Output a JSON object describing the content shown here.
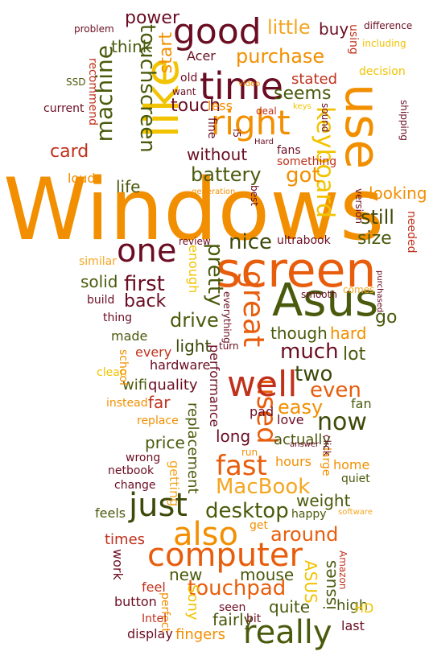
{
  "colors": {
    "orange": "#f28f00",
    "deep_orange": "#e85d0c",
    "dark_orange": "#d2560a",
    "red": "#c0311c",
    "crimson": "#a61e2d",
    "maroon": "#6b0d22",
    "olive": "#4a5a0c",
    "dark_olive": "#3d4a0a",
    "yellow": "#f2c300",
    "light_orange": "#f5a623"
  },
  "words": {
    "windows": "Windows",
    "like": "like",
    "screen": "screen",
    "use": "use",
    "time": "time",
    "good": "good",
    "right": "right",
    "asus": "Asus",
    "computer": "computer",
    "great": "great",
    "well": "well",
    "also": "also",
    "really": "really",
    "just": "just",
    "keyboard": "keyboard",
    "machine": "machine",
    "touchscreen": "touchscreen",
    "one": "one",
    "used": "used",
    "fast": "fast",
    "purchase": "purchase",
    "battery": "battery",
    "pretty": "pretty",
    "first": "first",
    "drive": "drive",
    "desktop": "desktop",
    "touchpad": "touchpad",
    "macbook": "MacBook",
    "around": "around",
    "now": "now",
    "two": "two",
    "much": "much",
    "even": "even",
    "easy": "easy",
    "little": "little",
    "power": "power",
    "think": "think",
    "start": "start",
    "touch": "touch",
    "got": "got",
    "still": "still",
    "looking": "looking",
    "nice": "nice",
    "size": "size",
    "solid": "solid",
    "back": "back",
    "light": "light",
    "though": "though",
    "hard": "hard",
    "go": "go",
    "lot": "lot",
    "seems": "seems",
    "stated": "stated",
    "buy": "buy",
    "card": "card",
    "without": "without",
    "life": "life",
    "loud": "loud",
    "new": "new",
    "mouse": "mouse",
    "quite": "quite",
    "fairly": "fairly",
    "fingers": "fingers",
    "display": "display",
    "button": "button",
    "work": "work",
    "times": "times",
    "feels": "feels",
    "price": "price",
    "long": "long",
    "replacement": "replacement",
    "performance": "performance",
    "quality": "quality",
    "wifi": "wifi",
    "far": "far",
    "hardware": "hardware",
    "every": "every",
    "made": "made",
    "thing": "thing",
    "build": "build",
    "pad": "pad",
    "love": "love",
    "actually": "actually",
    "hours": "hours",
    "home": "home",
    "weight": "weight",
    "happy": "happy",
    "asus_caps": "ASUS",
    "issues": "issues",
    "high": "high",
    "hd": "HD",
    "last": "last",
    "sony": "Sony",
    "feel": "feel",
    "perfect": "perfect",
    "intel": "Intel",
    "seen": "seen",
    "bit": "bit",
    "getting": "getting",
    "change": "change",
    "netbook": "netbook",
    "wrong": "wrong",
    "replace": "replace",
    "instead": "instead",
    "clean": "clean",
    "school": "school",
    "similar": "similar",
    "enough": "enough",
    "review": "review",
    "ultrabook": "ultrabook",
    "smooth": "smooth",
    "comes": "comes",
    "purchased": "purchased",
    "needed": "needed",
    "version": "version",
    "generation": "generation",
    "best": "best",
    "hard2": "Hard",
    "something": "something",
    "fans": "fans",
    "fine": "fine",
    "i5": "i5",
    "want": "want",
    "old": "old",
    "acer": "Acer",
    "video": "video",
    "less": "less",
    "deal": "deal",
    "keys": "keys",
    "sound": "sound",
    "shipping": "shipping",
    "decision": "decision",
    "including": "including",
    "difference": "difference",
    "using": "using",
    "problem": "problem",
    "ssd": "SSD",
    "recommend": "recommend",
    "current": "current",
    "everything": "everything",
    "turn": "turn",
    "fan": "fan",
    "run": "run",
    "large": "large",
    "click": "click",
    "answer": "answer",
    "quiet": "quiet",
    "software": "software",
    "get": "get",
    "amazon": "Amazon"
  }
}
